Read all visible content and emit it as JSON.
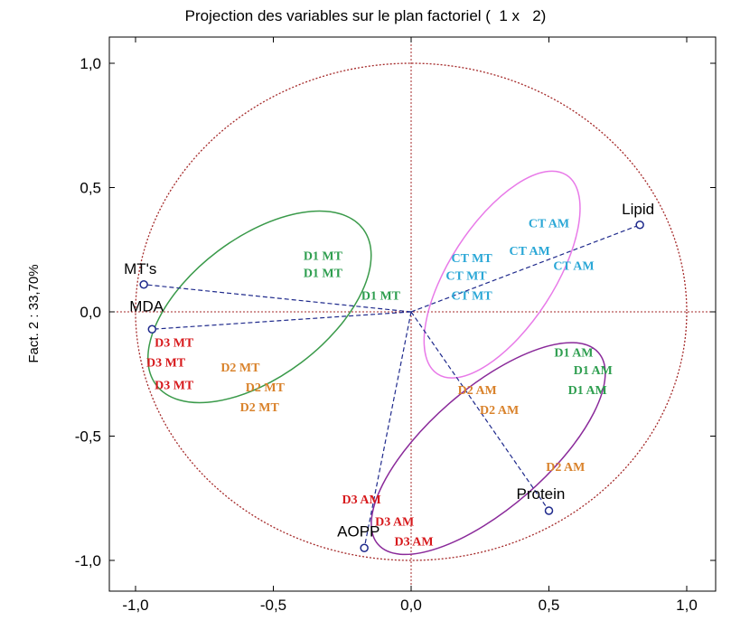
{
  "chart_data": {
    "type": "scatter",
    "title": "Projection des variables sur le plan factoriel (  1 x   2)",
    "xlabel": "",
    "ylabel": "Fact. 2 : 33,70%",
    "xlim": [
      -1.1,
      1.1
    ],
    "ylim": [
      -1.1,
      1.1
    ],
    "xticks": [
      "-1,0",
      "-0,5",
      "0,0",
      "0,5",
      "1,0"
    ],
    "yticks": [
      "1,0",
      "0,5",
      "0,0",
      "-0,5",
      "-1,0"
    ],
    "grid": false,
    "unit_circle": {
      "radius": 1.0,
      "color": "#a52a2a"
    },
    "variables": [
      {
        "name": "Lipid",
        "x": 0.83,
        "y": 0.35
      },
      {
        "name": "MT's",
        "x": -0.97,
        "y": 0.11
      },
      {
        "name": "MDA",
        "x": -0.94,
        "y": -0.07
      },
      {
        "name": "Protein",
        "x": 0.5,
        "y": -0.8
      },
      {
        "name": "AOPP",
        "x": -0.17,
        "y": -0.95
      }
    ],
    "groups": [
      {
        "color": "#2e9e4f",
        "labels": [
          {
            "text": "D1 MT",
            "x": -0.32,
            "y": 0.21
          },
          {
            "text": "D1 MT",
            "x": -0.32,
            "y": 0.14
          },
          {
            "text": "D1 MT",
            "x": -0.11,
            "y": 0.05
          },
          {
            "text": "D1 AM",
            "x": 0.59,
            "y": -0.18
          },
          {
            "text": "D1 AM",
            "x": 0.66,
            "y": -0.25
          },
          {
            "text": "D1 AM",
            "x": 0.64,
            "y": -0.33
          }
        ]
      },
      {
        "color": "#d9822b",
        "labels": [
          {
            "text": "D2 MT",
            "x": -0.62,
            "y": -0.24
          },
          {
            "text": "D2 MT",
            "x": -0.53,
            "y": -0.32
          },
          {
            "text": "D2 MT",
            "x": -0.55,
            "y": -0.4
          },
          {
            "text": "D2 AM",
            "x": 0.24,
            "y": -0.33
          },
          {
            "text": "D2 AM",
            "x": 0.32,
            "y": -0.41
          },
          {
            "text": "D2 AM",
            "x": 0.56,
            "y": -0.64
          }
        ]
      },
      {
        "color": "#d7191c",
        "labels": [
          {
            "text": "D3 MT",
            "x": -0.86,
            "y": -0.14
          },
          {
            "text": "D3 MT",
            "x": -0.89,
            "y": -0.22
          },
          {
            "text": "D3 MT",
            "x": -0.86,
            "y": -0.31
          },
          {
            "text": "D3 AM",
            "x": -0.18,
            "y": -0.77
          },
          {
            "text": "D3 AM",
            "x": -0.06,
            "y": -0.86
          },
          {
            "text": "D3 AM",
            "x": 0.01,
            "y": -0.94
          }
        ]
      },
      {
        "color": "#2aa7d6",
        "labels": [
          {
            "text": "CT MT",
            "x": 0.22,
            "y": 0.2
          },
          {
            "text": "CT MT",
            "x": 0.2,
            "y": 0.13
          },
          {
            "text": "CT MT",
            "x": 0.22,
            "y": 0.05
          },
          {
            "text": "CT AM",
            "x": 0.5,
            "y": 0.34
          },
          {
            "text": "CT AM",
            "x": 0.43,
            "y": 0.23
          },
          {
            "text": "CT AM",
            "x": 0.59,
            "y": 0.17
          }
        ]
      }
    ],
    "ellipses": [
      {
        "color": "#3a9a4a",
        "cx": -0.55,
        "cy": 0.02,
        "rx": 0.47,
        "ry": 0.28,
        "angle_deg": 37
      },
      {
        "color": "#e87ae8",
        "cx": 0.33,
        "cy": 0.15,
        "rx": 0.43,
        "ry": 0.21,
        "angle_deg": 57
      },
      {
        "color": "#8a2a9a",
        "cx": 0.28,
        "cy": -0.55,
        "rx": 0.53,
        "ry": 0.24,
        "angle_deg": 41
      }
    ]
  }
}
